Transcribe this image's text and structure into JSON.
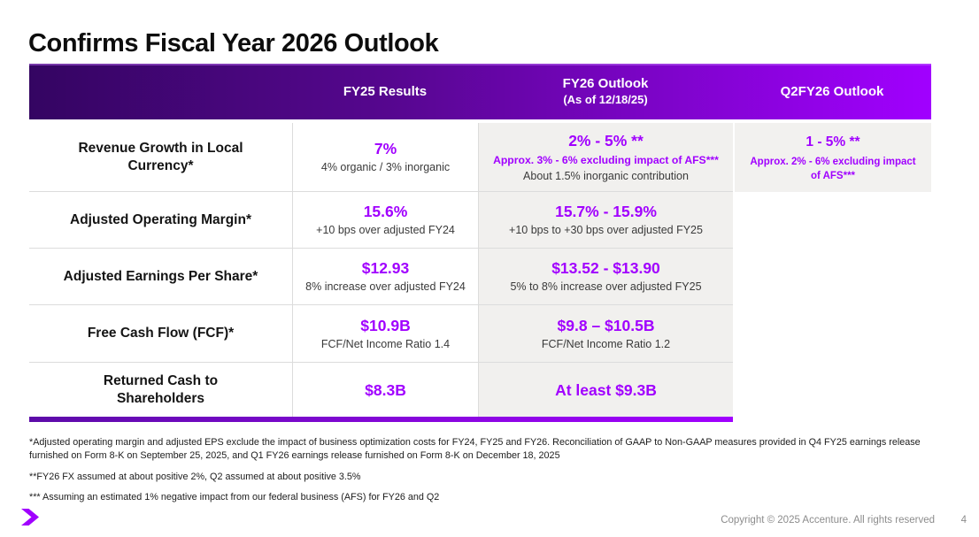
{
  "slide_title": "Confirms Fiscal Year 2026 Outlook",
  "table": {
    "header": {
      "fy25": "FY25 Results",
      "fy26": "FY26 Outlook",
      "fy26_note": "(As of 12/18/25)",
      "q2": "Q2FY26 Outlook"
    },
    "rows": [
      {
        "label": "Revenue Growth in Local\nCurrency*",
        "fy25": {
          "value": "7%",
          "sub": "4% organic / 3% inorganic"
        },
        "fy26": {
          "value": "2% - 5% **",
          "sub_purple": "Approx. 3% - 6% excluding impact of AFS***",
          "sub": "About 1.5% inorganic contribution"
        },
        "q2": {
          "value": "1 - 5% **",
          "sub_purple": "Approx. 2% - 6% excluding impact of AFS***"
        }
      },
      {
        "label": "Adjusted Operating Margin*",
        "fy25": {
          "value": "15.6%",
          "sub": "+10 bps over adjusted FY24"
        },
        "fy26": {
          "value": "15.7% - 15.9%",
          "sub": "+10 bps to +30 bps over adjusted FY25"
        }
      },
      {
        "label": "Adjusted Earnings Per Share*",
        "fy25": {
          "value": "$12.93",
          "sub": "8% increase over adjusted FY24"
        },
        "fy26": {
          "value": "$13.52 - $13.90",
          "sub": "5% to 8% increase over adjusted FY25"
        }
      },
      {
        "label": "Free Cash Flow (FCF)*",
        "fy25": {
          "value": "$10.9B",
          "sub": "FCF/Net Income Ratio 1.4"
        },
        "fy26": {
          "value": "$9.8 – $10.5B",
          "sub": "FCF/Net Income Ratio 1.2"
        }
      },
      {
        "label": "Returned Cash to\nShareholders",
        "fy25": {
          "value": "$8.3B"
        },
        "fy26": {
          "value": "At least $9.3B"
        }
      }
    ]
  },
  "footnotes": [
    "*Adjusted operating margin and adjusted EPS exclude the impact of business optimization costs for FY24, FY25 and FY26. Reconciliation of GAAP to Non-GAAP measures provided in Q4 FY25 earnings release furnished on Form 8-K on September 25, 2025, and Q1 FY26 earnings release furnished on Form 8-K on December 18, 2025",
    "**FY26 FX assumed at about positive 2%, Q2 assumed at about positive 3.5%",
    "*** Assuming an estimated 1% negative impact from our federal business (AFS) for FY26 and Q2"
  ],
  "footer": {
    "copyright": "Copyright © 2025 Accenture. All rights reserved",
    "page_number": "4"
  },
  "colors": {
    "accent_purple": "#A100FF",
    "header_gradient_start": "#340562",
    "header_gradient_end": "#A100FF",
    "cell_background_gray": "#F1F0EE"
  }
}
